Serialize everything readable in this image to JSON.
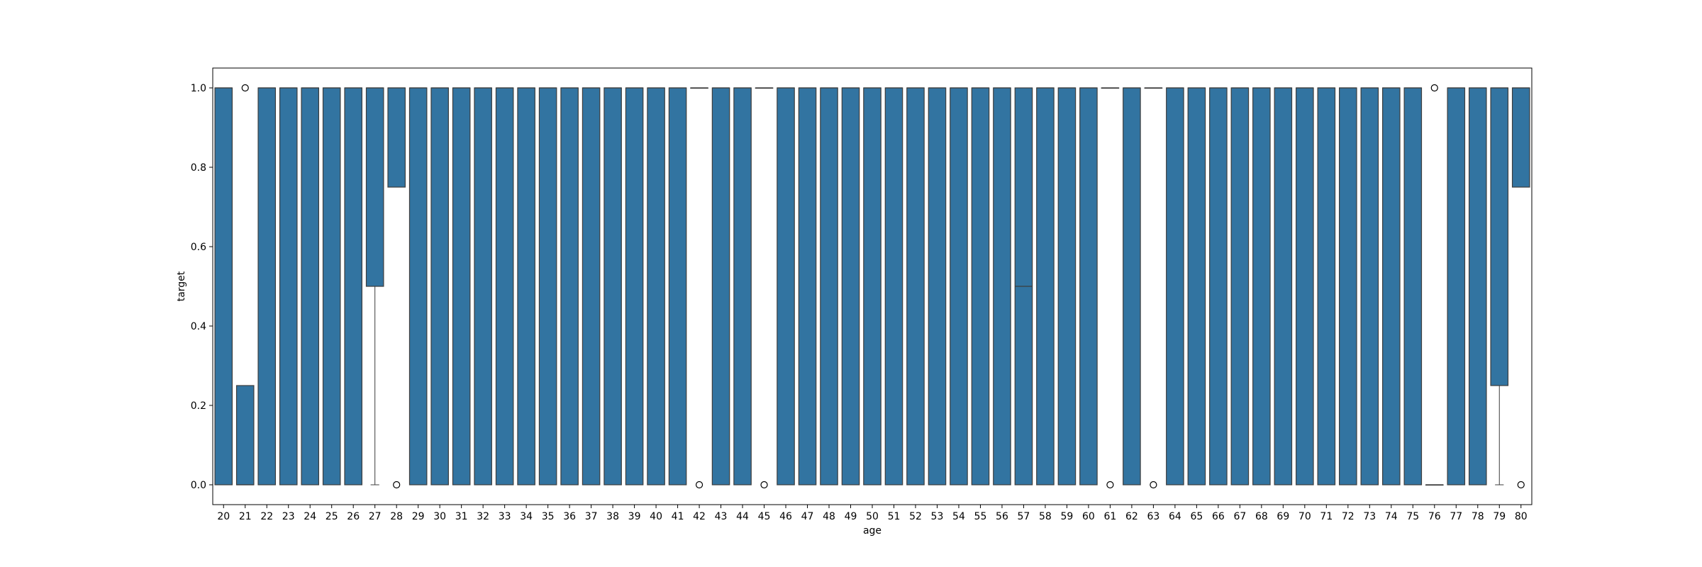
{
  "chart_data": {
    "type": "box",
    "title": "",
    "xlabel": "age",
    "ylabel": "target",
    "ylim": [
      -0.05,
      1.05
    ],
    "yticks": [
      "0.0",
      "0.2",
      "0.4",
      "0.6",
      "0.8",
      "1.0"
    ],
    "box_color": "#3274a1",
    "grid": false,
    "categories": [
      "20",
      "21",
      "22",
      "23",
      "24",
      "25",
      "26",
      "27",
      "28",
      "29",
      "30",
      "31",
      "32",
      "33",
      "34",
      "35",
      "36",
      "37",
      "38",
      "39",
      "40",
      "41",
      "42",
      "43",
      "44",
      "45",
      "46",
      "47",
      "48",
      "49",
      "50",
      "51",
      "52",
      "53",
      "54",
      "55",
      "56",
      "57",
      "58",
      "59",
      "60",
      "61",
      "62",
      "63",
      "64",
      "65",
      "66",
      "67",
      "68",
      "69",
      "70",
      "71",
      "72",
      "73",
      "74",
      "75",
      "76",
      "77",
      "78",
      "79",
      "80"
    ],
    "boxes": [
      {
        "q1": 0,
        "med": 1,
        "q3": 1,
        "wlo": 0,
        "whi": 1,
        "fliers": []
      },
      {
        "q1": 0,
        "med": 0,
        "q3": 0.25,
        "wlo": 0,
        "whi": 0.25,
        "fliers": [
          1
        ]
      },
      {
        "q1": 0,
        "med": 1,
        "q3": 1,
        "wlo": 0,
        "whi": 1,
        "fliers": []
      },
      {
        "q1": 0,
        "med": 1,
        "q3": 1,
        "wlo": 0,
        "whi": 1,
        "fliers": []
      },
      {
        "q1": 0,
        "med": 1,
        "q3": 1,
        "wlo": 0,
        "whi": 1,
        "fliers": []
      },
      {
        "q1": 0,
        "med": 1,
        "q3": 1,
        "wlo": 0,
        "whi": 1,
        "fliers": []
      },
      {
        "q1": 0,
        "med": 1,
        "q3": 1,
        "wlo": 0,
        "whi": 1,
        "fliers": []
      },
      {
        "q1": 0.5,
        "med": 1,
        "q3": 1,
        "wlo": 0,
        "whi": 1,
        "fliers": []
      },
      {
        "q1": 0.75,
        "med": 1,
        "q3": 1,
        "wlo": 0.75,
        "whi": 1,
        "fliers": [
          0
        ]
      },
      {
        "q1": 0,
        "med": 1,
        "q3": 1,
        "wlo": 0,
        "whi": 1,
        "fliers": []
      },
      {
        "q1": 0,
        "med": 1,
        "q3": 1,
        "wlo": 0,
        "whi": 1,
        "fliers": []
      },
      {
        "q1": 0,
        "med": 1,
        "q3": 1,
        "wlo": 0,
        "whi": 1,
        "fliers": []
      },
      {
        "q1": 0,
        "med": 1,
        "q3": 1,
        "wlo": 0,
        "whi": 1,
        "fliers": []
      },
      {
        "q1": 0,
        "med": 1,
        "q3": 1,
        "wlo": 0,
        "whi": 1,
        "fliers": []
      },
      {
        "q1": 0,
        "med": 1,
        "q3": 1,
        "wlo": 0,
        "whi": 1,
        "fliers": []
      },
      {
        "q1": 0,
        "med": 1,
        "q3": 1,
        "wlo": 0,
        "whi": 1,
        "fliers": []
      },
      {
        "q1": 0,
        "med": 1,
        "q3": 1,
        "wlo": 0,
        "whi": 1,
        "fliers": []
      },
      {
        "q1": 0,
        "med": 1,
        "q3": 1,
        "wlo": 0,
        "whi": 1,
        "fliers": []
      },
      {
        "q1": 0,
        "med": 1,
        "q3": 1,
        "wlo": 0,
        "whi": 1,
        "fliers": []
      },
      {
        "q1": 0,
        "med": 1,
        "q3": 1,
        "wlo": 0,
        "whi": 1,
        "fliers": []
      },
      {
        "q1": 0,
        "med": 1,
        "q3": 1,
        "wlo": 0,
        "whi": 1,
        "fliers": []
      },
      {
        "q1": 0,
        "med": 1,
        "q3": 1,
        "wlo": 0,
        "whi": 1,
        "fliers": []
      },
      {
        "q1": 1,
        "med": 1,
        "q3": 1,
        "wlo": 1,
        "whi": 1,
        "fliers": [
          0
        ]
      },
      {
        "q1": 0,
        "med": 1,
        "q3": 1,
        "wlo": 0,
        "whi": 1,
        "fliers": []
      },
      {
        "q1": 0,
        "med": 1,
        "q3": 1,
        "wlo": 0,
        "whi": 1,
        "fliers": []
      },
      {
        "q1": 1,
        "med": 1,
        "q3": 1,
        "wlo": 1,
        "whi": 1,
        "fliers": [
          0
        ]
      },
      {
        "q1": 0,
        "med": 1,
        "q3": 1,
        "wlo": 0,
        "whi": 1,
        "fliers": []
      },
      {
        "q1": 0,
        "med": 1,
        "q3": 1,
        "wlo": 0,
        "whi": 1,
        "fliers": []
      },
      {
        "q1": 0,
        "med": 1,
        "q3": 1,
        "wlo": 0,
        "whi": 1,
        "fliers": []
      },
      {
        "q1": 0,
        "med": 1,
        "q3": 1,
        "wlo": 0,
        "whi": 1,
        "fliers": []
      },
      {
        "q1": 0,
        "med": 1,
        "q3": 1,
        "wlo": 0,
        "whi": 1,
        "fliers": []
      },
      {
        "q1": 0,
        "med": 1,
        "q3": 1,
        "wlo": 0,
        "whi": 1,
        "fliers": []
      },
      {
        "q1": 0,
        "med": 1,
        "q3": 1,
        "wlo": 0,
        "whi": 1,
        "fliers": []
      },
      {
        "q1": 0,
        "med": 1,
        "q3": 1,
        "wlo": 0,
        "whi": 1,
        "fliers": []
      },
      {
        "q1": 0,
        "med": 1,
        "q3": 1,
        "wlo": 0,
        "whi": 1,
        "fliers": []
      },
      {
        "q1": 0,
        "med": 1,
        "q3": 1,
        "wlo": 0,
        "whi": 1,
        "fliers": []
      },
      {
        "q1": 0,
        "med": 1,
        "q3": 1,
        "wlo": 0,
        "whi": 1,
        "fliers": []
      },
      {
        "q1": 0,
        "med": 0.5,
        "q3": 1,
        "wlo": 0,
        "whi": 1,
        "fliers": []
      },
      {
        "q1": 0,
        "med": 1,
        "q3": 1,
        "wlo": 0,
        "whi": 1,
        "fliers": []
      },
      {
        "q1": 0,
        "med": 1,
        "q3": 1,
        "wlo": 0,
        "whi": 1,
        "fliers": []
      },
      {
        "q1": 0,
        "med": 1,
        "q3": 1,
        "wlo": 0,
        "whi": 1,
        "fliers": []
      },
      {
        "q1": 1,
        "med": 1,
        "q3": 1,
        "wlo": 1,
        "whi": 1,
        "fliers": [
          0
        ]
      },
      {
        "q1": 0,
        "med": 1,
        "q3": 1,
        "wlo": 0,
        "whi": 1,
        "fliers": []
      },
      {
        "q1": 1,
        "med": 1,
        "q3": 1,
        "wlo": 1,
        "whi": 1,
        "fliers": [
          0
        ]
      },
      {
        "q1": 0,
        "med": 1,
        "q3": 1,
        "wlo": 0,
        "whi": 1,
        "fliers": []
      },
      {
        "q1": 0,
        "med": 1,
        "q3": 1,
        "wlo": 0,
        "whi": 1,
        "fliers": []
      },
      {
        "q1": 0,
        "med": 1,
        "q3": 1,
        "wlo": 0,
        "whi": 1,
        "fliers": []
      },
      {
        "q1": 0,
        "med": 1,
        "q3": 1,
        "wlo": 0,
        "whi": 1,
        "fliers": []
      },
      {
        "q1": 0,
        "med": 1,
        "q3": 1,
        "wlo": 0,
        "whi": 1,
        "fliers": []
      },
      {
        "q1": 0,
        "med": 1,
        "q3": 1,
        "wlo": 0,
        "whi": 1,
        "fliers": []
      },
      {
        "q1": 0,
        "med": 1,
        "q3": 1,
        "wlo": 0,
        "whi": 1,
        "fliers": []
      },
      {
        "q1": 0,
        "med": 1,
        "q3": 1,
        "wlo": 0,
        "whi": 1,
        "fliers": []
      },
      {
        "q1": 0,
        "med": 1,
        "q3": 1,
        "wlo": 0,
        "whi": 1,
        "fliers": []
      },
      {
        "q1": 0,
        "med": 1,
        "q3": 1,
        "wlo": 0,
        "whi": 1,
        "fliers": []
      },
      {
        "q1": 0,
        "med": 1,
        "q3": 1,
        "wlo": 0,
        "whi": 1,
        "fliers": []
      },
      {
        "q1": 0,
        "med": 1,
        "q3": 1,
        "wlo": 0,
        "whi": 1,
        "fliers": []
      },
      {
        "q1": 0,
        "med": 0,
        "q3": 0,
        "wlo": 0,
        "whi": 0,
        "fliers": [
          1
        ]
      },
      {
        "q1": 0,
        "med": 1,
        "q3": 1,
        "wlo": 0,
        "whi": 1,
        "fliers": []
      },
      {
        "q1": 0,
        "med": 1,
        "q3": 1,
        "wlo": 0,
        "whi": 1,
        "fliers": []
      },
      {
        "q1": 0.25,
        "med": 1,
        "q3": 1,
        "wlo": 0,
        "whi": 1,
        "fliers": []
      },
      {
        "q1": 0.75,
        "med": 1,
        "q3": 1,
        "wlo": 0.75,
        "whi": 1,
        "fliers": [
          0
        ]
      }
    ]
  }
}
